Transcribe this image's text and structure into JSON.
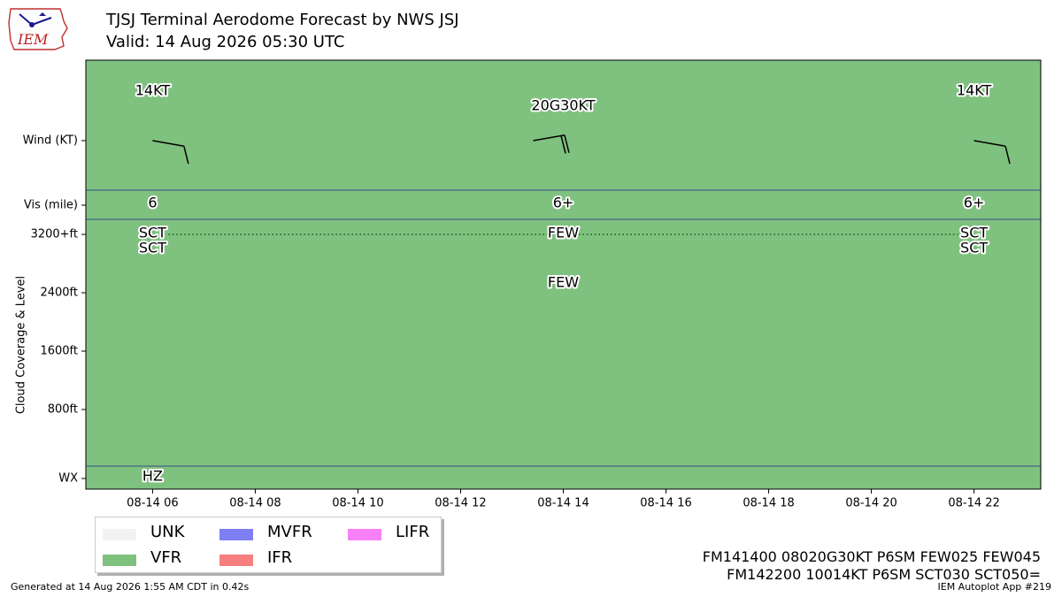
{
  "header": {
    "title": "TJSJ Terminal Aerodome Forecast by NWS JSJ",
    "valid": "Valid: 14 Aug 2026 05:30 UTC",
    "logo_text": "IEM"
  },
  "chart_data": {
    "type": "table",
    "x_axis": {
      "unit": "UTC hour",
      "range_hours": [
        4.7,
        23.3
      ],
      "ticks": [
        {
          "hour": 6,
          "label": "08-14 06"
        },
        {
          "hour": 8,
          "label": "08-14 08"
        },
        {
          "hour": 10,
          "label": "08-14 10"
        },
        {
          "hour": 12,
          "label": "08-14 12"
        },
        {
          "hour": 14,
          "label": "08-14 14"
        },
        {
          "hour": 16,
          "label": "08-14 16"
        },
        {
          "hour": 18,
          "label": "08-14 18"
        },
        {
          "hour": 20,
          "label": "08-14 20"
        },
        {
          "hour": 22,
          "label": "08-14 22"
        }
      ]
    },
    "y_axis": {
      "label": "Cloud Coverage & Level",
      "ticks": [
        {
          "label": "Wind (KT)",
          "row": "wind"
        },
        {
          "label": "Vis (mile)",
          "row": "vis"
        },
        {
          "label": "3200+ft",
          "level_ft": 3200
        },
        {
          "label": "2400ft",
          "level_ft": 2400
        },
        {
          "label": "1600ft",
          "level_ft": 1600
        },
        {
          "label": "800ft",
          "level_ft": 800
        },
        {
          "label": "WX",
          "row": "wx"
        }
      ]
    },
    "background_category": "VFR",
    "background_color": "#7fc17f",
    "forecasts": [
      {
        "hour": 6,
        "wind_label": "14KT",
        "wind_dir": 100,
        "wind_speed": 14,
        "vis": "6",
        "clouds": [
          {
            "cover": "SCT",
            "level_ft": 3200
          },
          {
            "cover": "SCT",
            "level_ft": 3200
          }
        ],
        "wx": "HZ"
      },
      {
        "hour": 14,
        "wind_label": "20G30KT",
        "wind_dir": 80,
        "wind_speed": 20,
        "vis": "6+",
        "clouds": [
          {
            "cover": "FEW",
            "level_ft": 3200
          },
          {
            "cover": "FEW",
            "level_ft": 2500
          }
        ],
        "wx": ""
      },
      {
        "hour": 22,
        "wind_label": "14KT",
        "wind_dir": 100,
        "wind_speed": 14,
        "vis": "6+",
        "clouds": [
          {
            "cover": "SCT",
            "level_ft": 3200
          },
          {
            "cover": "SCT",
            "level_ft": 3200
          }
        ],
        "wx": ""
      }
    ],
    "dotted_line_level_ft": 3200
  },
  "legend": {
    "items": [
      {
        "label": "UNK",
        "color": "#f2f2f2"
      },
      {
        "label": "MVFR",
        "color": "#7f7ff5"
      },
      {
        "label": "LIFR",
        "color": "#fa80fa"
      },
      {
        "label": "VFR",
        "color": "#7fc17f"
      },
      {
        "label": "IFR",
        "color": "#f77f7f"
      }
    ]
  },
  "taf_lines": [
    "FM141400 08020G30KT P6SM FEW025 FEW045",
    "FM142200 10014KT P6SM SCT030 SCT050="
  ],
  "footer": {
    "generated": "Generated at 14 Aug 2026 1:55 AM CDT in 0.42s",
    "app": "IEM Autoplot App #219"
  }
}
